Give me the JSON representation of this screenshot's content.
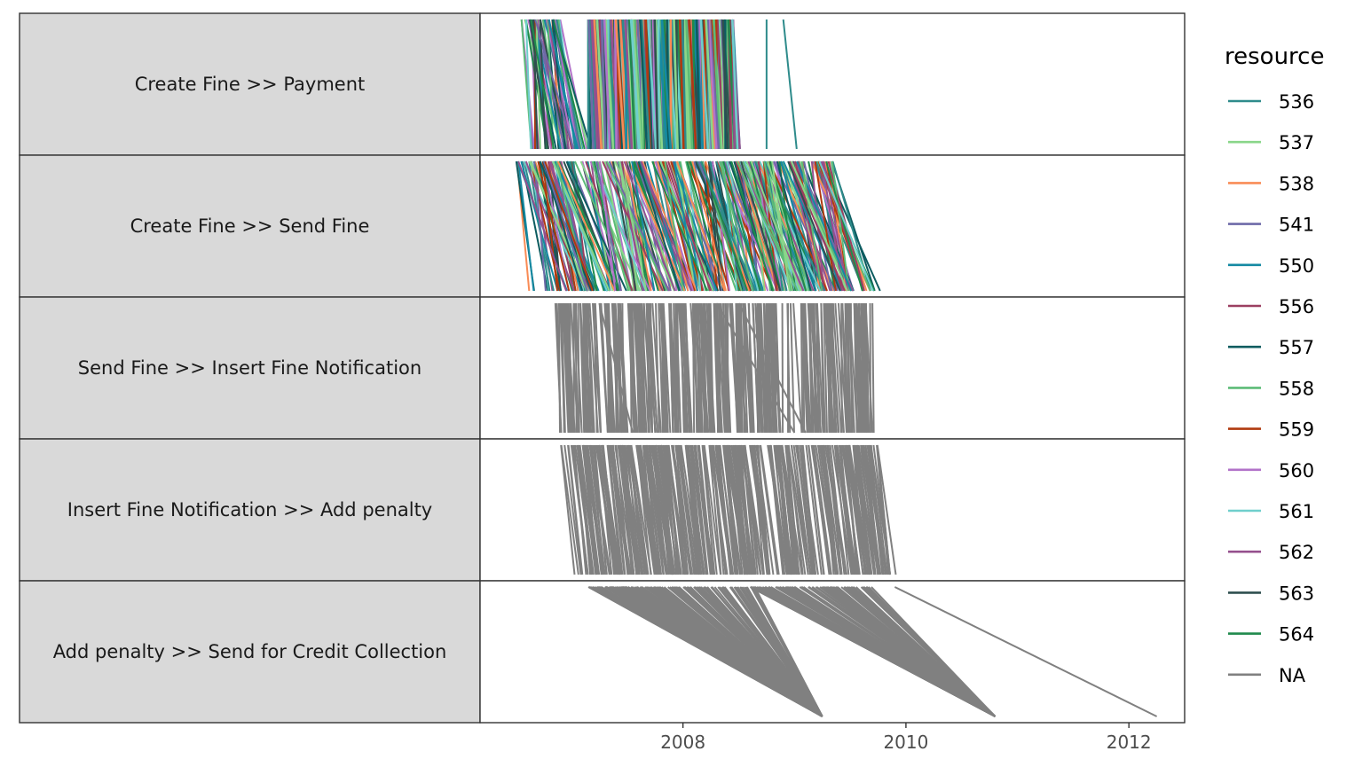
{
  "chart_data": {
    "type": "line",
    "x_axis": {
      "type": "date",
      "ticks": [
        "2008",
        "2010",
        "2012"
      ],
      "tick_years": [
        2008,
        2010,
        2012
      ],
      "xlim": [
        2006.18,
        2012.5
      ]
    },
    "facets": [
      {
        "label": "Create Fine >> Payment",
        "colored": true
      },
      {
        "label": "Create Fine >> Send Fine",
        "colored": true
      },
      {
        "label": "Send Fine >> Insert Fine Notification",
        "colored": false
      },
      {
        "label": "Insert Fine Notification >> Add penalty",
        "colored": false
      },
      {
        "label": "Add penalty >> Send for Credit Collection",
        "colored": false
      }
    ],
    "legend": {
      "title": "resource",
      "position": "right",
      "items": [
        {
          "label": "536",
          "color": "#2e8b8b"
        },
        {
          "label": "537",
          "color": "#8ad68a"
        },
        {
          "label": "538",
          "color": "#f98c56"
        },
        {
          "label": "541",
          "color": "#6e6aa8"
        },
        {
          "label": "550",
          "color": "#158aa3"
        },
        {
          "label": "556",
          "color": "#9b3f61"
        },
        {
          "label": "557",
          "color": "#0d5c60"
        },
        {
          "label": "558",
          "color": "#5dbb77"
        },
        {
          "label": "559",
          "color": "#b03a0f"
        },
        {
          "label": "560",
          "color": "#b273c9"
        },
        {
          "label": "561",
          "color": "#6fcfcc"
        },
        {
          "label": "562",
          "color": "#95508e"
        },
        {
          "label": "563",
          "color": "#2f4f4f"
        },
        {
          "label": "564",
          "color": "#1f8a4c"
        },
        {
          "label": "NA",
          "color": "#808080"
        }
      ]
    },
    "na_color": "#808080",
    "grid": false
  }
}
